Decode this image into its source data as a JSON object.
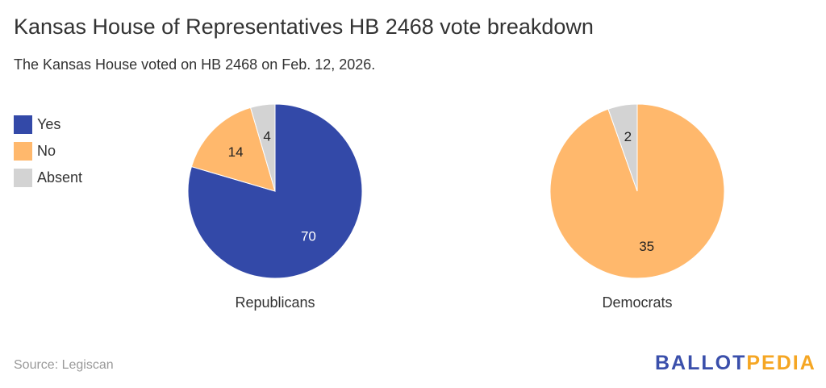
{
  "title": "Kansas House of Representatives HB 2468 vote breakdown",
  "subtitle": "The Kansas House voted on HB 2468 on Feb. 12, 2026.",
  "source": "Source: Legiscan",
  "logo": {
    "part1": "BALLOT",
    "part2": "PEDIA",
    "color1": "#3a4fab",
    "color2": "#f5a623"
  },
  "chart_data": {
    "type": "pie",
    "title": "Kansas House of Representatives HB 2468 vote breakdown",
    "legend": [
      {
        "label": "Yes",
        "color": "#3349a8"
      },
      {
        "label": "No",
        "color": "#ffb86c"
      },
      {
        "label": "Absent",
        "color": "#d3d3d3"
      }
    ],
    "legend_position": "top-left",
    "pies": [
      {
        "name": "Republicans",
        "values": [
          70,
          14,
          4
        ]
      },
      {
        "name": "Democrats",
        "values": [
          0,
          35,
          2
        ]
      }
    ]
  }
}
